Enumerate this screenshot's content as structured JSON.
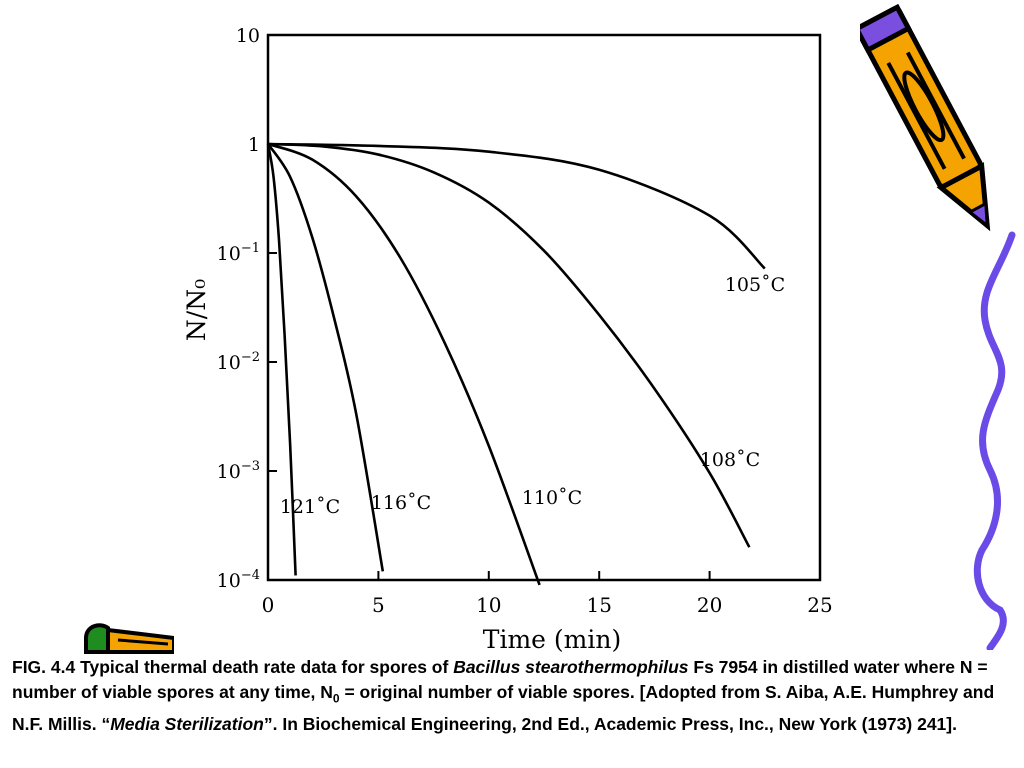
{
  "chart_data": {
    "type": "line",
    "ylabel": "N/N₀",
    "xlabel": "Time (min)",
    "yscale": "log",
    "xlim": [
      0,
      25
    ],
    "ylim": [
      0.0001,
      10
    ],
    "x_ticks": [
      "0",
      "5",
      "10",
      "15",
      "20",
      "25"
    ],
    "y_ticks": [
      {
        "base": "10",
        "exp": "",
        "label": "10"
      },
      {
        "base": "1",
        "exp": "",
        "label": "1"
      },
      {
        "base": "10",
        "exp": "−1",
        "label": "10⁻¹"
      },
      {
        "base": "10",
        "exp": "−2",
        "label": "10⁻²"
      },
      {
        "base": "10",
        "exp": "−3",
        "label": "10⁻³"
      },
      {
        "base": "10",
        "exp": "−4",
        "label": "10⁻⁴"
      }
    ],
    "series": [
      {
        "name": "105˚C",
        "points": [
          [
            0,
            1
          ],
          [
            5,
            0.96
          ],
          [
            10,
            0.85
          ],
          [
            15,
            0.58
          ],
          [
            20,
            0.22
          ],
          [
            22.5,
            0.072
          ]
        ]
      },
      {
        "name": "108˚C",
        "points": [
          [
            0,
            1
          ],
          [
            2.5,
            0.95
          ],
          [
            5,
            0.8
          ],
          [
            7.5,
            0.55
          ],
          [
            10,
            0.29
          ],
          [
            12.5,
            0.105
          ],
          [
            15,
            0.027
          ],
          [
            17.5,
            0.0057
          ],
          [
            20,
            0.00096
          ],
          [
            21.8,
            0.0002
          ]
        ]
      },
      {
        "name": "110˚C",
        "points": [
          [
            0,
            1
          ],
          [
            2,
            0.72
          ],
          [
            4,
            0.33
          ],
          [
            6,
            0.09
          ],
          [
            8,
            0.015
          ],
          [
            10,
            0.0017
          ],
          [
            12.3,
            9e-05
          ]
        ]
      },
      {
        "name": "116˚C",
        "points": [
          [
            0,
            1
          ],
          [
            1,
            0.5
          ],
          [
            2,
            0.14
          ],
          [
            3,
            0.025
          ],
          [
            4,
            0.0033
          ],
          [
            5.2,
            0.00012
          ]
        ]
      },
      {
        "name": "121˚C",
        "points": [
          [
            0,
            1
          ],
          [
            0.25,
            0.5
          ],
          [
            0.5,
            0.13
          ],
          [
            0.75,
            0.018
          ],
          [
            1.0,
            0.0018
          ],
          [
            1.25,
            0.00011
          ]
        ]
      }
    ],
    "grid": false,
    "legend": "curve labels placed at line ends"
  },
  "caption": {
    "lead": "FIG. 4.4 Typical thermal death rate data for spores of ",
    "species": "Bacillus stearothermophilus",
    "after_species": " Fs 7954 in distilled water where N = number of viable spores at any time, N",
    "sub0": "0",
    "after_sub": " = original number of viable spores. [Adopted from S. Aiba, A.E. Humphrey and N.F. Millis. “",
    "book": "Media Sterilization",
    "tail": "”. In Biochemical Engineering, 2nd Ed., Academic Press, Inc., New York (1973) 241]."
  },
  "colors": {
    "axis": "#000000",
    "pencil_body": "#F5A300",
    "pencil_eraser": "#7A4FE0",
    "pencil_grip": "#1E8C1E",
    "scribble": "#6A4BE8"
  },
  "decorations": {
    "top_right": "pencil-icon",
    "right_edge": "scribble-line",
    "bottom_left": "pencil-icon"
  }
}
